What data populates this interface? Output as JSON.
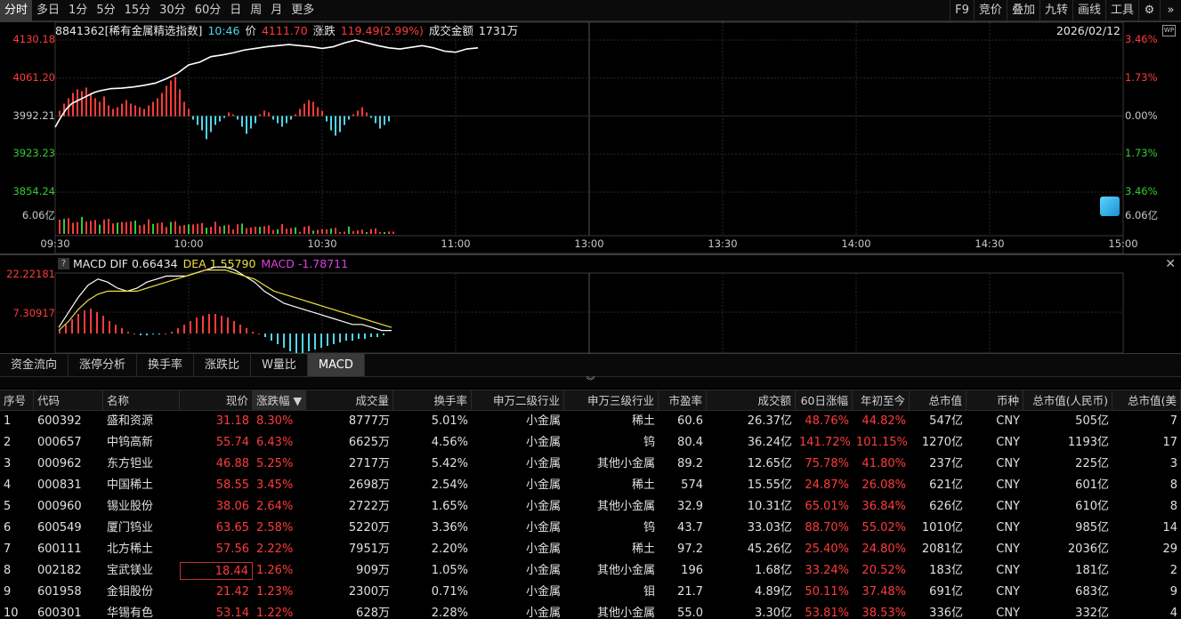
{
  "periods": [
    {
      "label": "分时",
      "active": true
    },
    {
      "label": "多日"
    },
    {
      "label": "1分"
    },
    {
      "label": "5分"
    },
    {
      "label": "15分"
    },
    {
      "label": "30分"
    },
    {
      "label": "60分"
    },
    {
      "label": "日"
    },
    {
      "label": "周"
    },
    {
      "label": "月"
    },
    {
      "label": "更多"
    }
  ],
  "tools": [
    "F9",
    "竞价",
    "叠加",
    "九转",
    "画线",
    "工具"
  ],
  "quote": {
    "code_name": "8841362[稀有金属精选指数]",
    "time": "10:46",
    "price_label": "价",
    "price": "4111.70",
    "change_label": "涨跌",
    "change": "119.49(2.99%)",
    "amount_label": "成交金额",
    "amount": "1731万",
    "date": "2026/02/12",
    "wp_icon": "WP"
  },
  "price_axis": {
    "left": [
      {
        "label": "4130.18",
        "color": "#ff3b3b"
      },
      {
        "label": "4061.20",
        "color": "#ff3b3b"
      },
      {
        "label": "3992.21",
        "color": "#c8c8c8"
      },
      {
        "label": "3923.23",
        "color": "#33cc33"
      },
      {
        "label": "3854.24",
        "color": "#33cc33"
      }
    ],
    "right": [
      {
        "label": "3.46%",
        "color": "#ff3b3b"
      },
      {
        "label": "1.73%",
        "color": "#ff3b3b"
      },
      {
        "label": "0.00%",
        "color": "#c8c8c8"
      },
      {
        "label": "1.73%",
        "color": "#33cc33"
      },
      {
        "label": "3.46%",
        "color": "#33cc33"
      }
    ],
    "volume_left": "6.06亿",
    "volume_right": "6.06亿"
  },
  "time_axis": [
    "09:30",
    "10:00",
    "10:30",
    "11:00",
    "13:00",
    "13:30",
    "14:00",
    "14:30",
    "15:00"
  ],
  "chart_data": {
    "type": "line",
    "x_unit": "minutes since 09:30",
    "price": {
      "x": [
        0,
        1,
        2,
        3,
        4,
        5,
        6,
        7,
        8,
        9,
        10,
        12,
        14,
        16,
        18,
        20,
        22,
        24,
        26,
        28,
        30,
        32,
        34,
        36,
        38,
        40,
        42,
        44,
        46,
        48,
        50,
        52,
        54,
        56,
        58,
        60,
        62,
        64,
        66,
        68,
        70,
        72,
        74,
        76
      ],
      "y": [
        3972,
        3990,
        4005,
        4015,
        4020,
        4025,
        4030,
        4035,
        4038,
        4040,
        4042,
        4043,
        4045,
        4048,
        4052,
        4060,
        4070,
        4085,
        4090,
        4100,
        4103,
        4107,
        4112,
        4115,
        4118,
        4120,
        4122,
        4120,
        4118,
        4115,
        4118,
        4125,
        4130,
        4125,
        4120,
        4116,
        4114,
        4117,
        4120,
        4116,
        4110,
        4108,
        4114,
        4116
      ]
    },
    "ylim": [
      3854.24,
      4130.18
    ],
    "baseline": 3992.21,
    "macd": {
      "dif_label": "MACD DIF",
      "dif": "0.66434",
      "dea_label": "DEA",
      "dea": "1.55790",
      "macd_label": "MACD",
      "macd": "-1.78711",
      "ylim_labels": [
        "22.22181",
        "7.30917"
      ],
      "dif_line": [
        2,
        7,
        12,
        16,
        18,
        17,
        15,
        14,
        15,
        17,
        18,
        19,
        19,
        19,
        20,
        21,
        22,
        22,
        21,
        19,
        17,
        14,
        12,
        10,
        9,
        8,
        7,
        6,
        5,
        4,
        3,
        3,
        2,
        1,
        1
      ],
      "dea_line": [
        1,
        4,
        8,
        11,
        13,
        14,
        14,
        14,
        14,
        15,
        16,
        17,
        18,
        19,
        20,
        21,
        21,
        21,
        20,
        19,
        18,
        16,
        14,
        13,
        12,
        11,
        10,
        9,
        8,
        7,
        6,
        5,
        4,
        3,
        2
      ]
    }
  },
  "tabs": [
    {
      "label": "资金流向"
    },
    {
      "label": "涨停分析"
    },
    {
      "label": "换手率"
    },
    {
      "label": "涨跌比"
    },
    {
      "label": "W量比"
    },
    {
      "label": "MACD",
      "active": true
    }
  ],
  "table": {
    "headers": [
      "序号",
      "代码",
      "名称",
      "现价",
      "涨跌幅 ▼",
      "成交量",
      "换手率",
      "申万二级行业",
      "申万三级行业",
      "市盈率",
      "成交额",
      "60日涨幅",
      "年初至今",
      "总市值",
      "币种",
      "总市值(人民币)",
      "总市值(美"
    ],
    "rows": [
      [
        "1",
        "600392",
        "盛和资源",
        "31.18",
        "8.30%",
        "8777万",
        "5.01%",
        "小金属",
        "稀土",
        "60.6",
        "26.37亿",
        "48.76%",
        "44.82%",
        "547亿",
        "CNY",
        "505亿",
        "7"
      ],
      [
        "2",
        "000657",
        "中钨高新",
        "55.74",
        "6.43%",
        "6625万",
        "4.56%",
        "小金属",
        "钨",
        "80.4",
        "36.24亿",
        "141.72%",
        "101.15%",
        "1270亿",
        "CNY",
        "1193亿",
        "17"
      ],
      [
        "3",
        "000962",
        "东方钽业",
        "46.88",
        "5.25%",
        "2717万",
        "5.42%",
        "小金属",
        "其他小金属",
        "89.2",
        "12.65亿",
        "75.78%",
        "41.80%",
        "237亿",
        "CNY",
        "225亿",
        "3"
      ],
      [
        "4",
        "000831",
        "中国稀土",
        "58.55",
        "3.45%",
        "2698万",
        "2.54%",
        "小金属",
        "稀土",
        "574",
        "15.55亿",
        "24.87%",
        "26.08%",
        "621亿",
        "CNY",
        "601亿",
        "8"
      ],
      [
        "5",
        "000960",
        "锡业股份",
        "38.06",
        "2.64%",
        "2722万",
        "1.65%",
        "小金属",
        "其他小金属",
        "32.9",
        "10.31亿",
        "65.01%",
        "36.84%",
        "626亿",
        "CNY",
        "610亿",
        "8"
      ],
      [
        "6",
        "600549",
        "厦门钨业",
        "63.65",
        "2.58%",
        "5220万",
        "3.36%",
        "小金属",
        "钨",
        "43.7",
        "33.03亿",
        "88.70%",
        "55.02%",
        "1010亿",
        "CNY",
        "985亿",
        "14"
      ],
      [
        "7",
        "600111",
        "北方稀土",
        "57.56",
        "2.22%",
        "7951万",
        "2.20%",
        "小金属",
        "稀土",
        "97.2",
        "45.26亿",
        "25.40%",
        "24.80%",
        "2081亿",
        "CNY",
        "2036亿",
        "29"
      ],
      [
        "8",
        "002182",
        "宝武镁业",
        "18.44",
        "1.26%",
        "909万",
        "1.05%",
        "小金属",
        "其他小金属",
        "196",
        "1.68亿",
        "33.24%",
        "20.52%",
        "183亿",
        "CNY",
        "181亿",
        "2"
      ],
      [
        "9",
        "601958",
        "金钼股份",
        "21.42",
        "1.23%",
        "2300万",
        "0.71%",
        "小金属",
        "钼",
        "21.7",
        "4.89亿",
        "50.11%",
        "37.48%",
        "691亿",
        "CNY",
        "683亿",
        "9"
      ],
      [
        "10",
        "600301",
        "华锡有色",
        "53.14",
        "1.22%",
        "628万",
        "2.28%",
        "小金属",
        "其他小金属",
        "55.0",
        "3.30亿",
        "53.81%",
        "38.53%",
        "336亿",
        "CNY",
        "332亿",
        "4"
      ]
    ]
  },
  "colors": {
    "up": "#ff3b3b",
    "down": "#4fd6e8",
    "price_line": "#ffffff",
    "dea": "#f0e040"
  }
}
